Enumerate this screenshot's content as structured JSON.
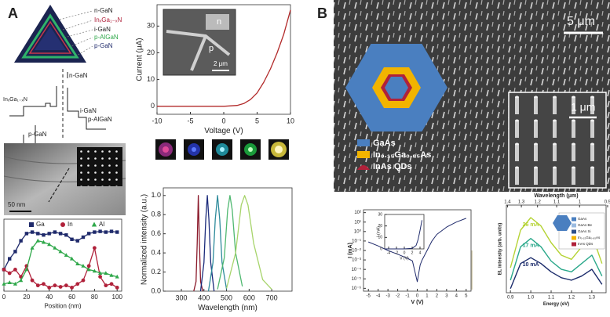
{
  "panel_labels": {
    "a": "A",
    "b": "B"
  },
  "structure_diagram": {
    "layers": [
      "n-GaN",
      "InₓGa₁₋ₓN",
      "i-GaN",
      "p-AlGaN",
      "p-GaN"
    ]
  },
  "band_diagram": {
    "labels": [
      "InₓGa₁₋ₓN",
      "n-GaN",
      "i-GaN",
      "p-AlGaN",
      "p-GaN"
    ]
  },
  "images": {
    "tem_scale": "50 nm",
    "sem_inset_labels": [
      "n",
      "p"
    ],
    "sem_inset_scale": "2 μm",
    "sem_scale": "5 μm",
    "sem_zoom_scale": "1 μm"
  },
  "nanowire_legend": [
    "GaAs",
    "In₀.₁₅Ga₀.₈₅As",
    "InAs QDs"
  ],
  "chart_data": [
    {
      "type": "line",
      "xlabel": "Voltage (V)",
      "ylabel": "Current (μA)",
      "x": [
        -10,
        -5,
        0,
        2,
        3,
        4,
        5,
        6,
        7,
        8,
        9,
        10
      ],
      "series": [
        {
          "color": "#b22a2a",
          "values": [
            0,
            0,
            0,
            0.3,
            1,
            2.5,
            5,
            9,
            14,
            20,
            27,
            36
          ]
        }
      ],
      "xlim": [
        -10,
        10
      ],
      "ylim": [
        -3,
        38
      ],
      "xticks": [
        -10,
        -5,
        0,
        5,
        10
      ],
      "yticks": [
        0,
        10,
        20,
        30
      ]
    },
    {
      "type": "line",
      "xlabel": "Position (nm)",
      "x": [
        0,
        5,
        10,
        15,
        20,
        25,
        30,
        35,
        40,
        45,
        50,
        55,
        60,
        65,
        70,
        75,
        80,
        85,
        90,
        95,
        100
      ],
      "series": [
        {
          "name": "Ga",
          "color": "#1f2a6b",
          "marker": "square",
          "values": [
            0.3,
            0.45,
            0.55,
            0.7,
            0.8,
            0.82,
            0.8,
            0.78,
            0.8,
            0.82,
            0.8,
            0.78,
            0.72,
            0.7,
            0.75,
            0.8,
            0.82,
            0.83,
            0.82,
            0.83,
            0.82
          ]
        },
        {
          "name": "In",
          "color": "#b0213a",
          "marker": "circle",
          "values": [
            0.3,
            0.25,
            0.3,
            0.2,
            0.35,
            0.15,
            0.08,
            0.1,
            0.05,
            0.08,
            0.06,
            0.08,
            0.05,
            0.1,
            0.15,
            0.35,
            0.6,
            0.2,
            0.08,
            0.1,
            0.05
          ]
        },
        {
          "name": "Al",
          "color": "#2fa84a",
          "marker": "triangle",
          "values": [
            0.1,
            0.12,
            0.1,
            0.15,
            0.3,
            0.6,
            0.7,
            0.68,
            0.65,
            0.6,
            0.55,
            0.5,
            0.45,
            0.38,
            0.35,
            0.3,
            0.28,
            0.25,
            0.25,
            0.22,
            0.2
          ]
        }
      ],
      "xlim": [
        0,
        104
      ],
      "ylim": [
        0,
        1
      ],
      "xticks": [
        0,
        20,
        40,
        60,
        80,
        100
      ]
    },
    {
      "type": "line",
      "xlabel": "Wavelength (nm)",
      "ylabel": "Normalized intensity (a.u.)",
      "series": [
        {
          "color": "#8b1a2b",
          "x": [
            355,
            365,
            370,
            375,
            380,
            385,
            395
          ],
          "values": [
            0,
            0.1,
            0.5,
            1,
            0.5,
            0.1,
            0
          ]
        },
        {
          "color": "#1a2a7a",
          "x": [
            385,
            400,
            408,
            415,
            422,
            430,
            445
          ],
          "values": [
            0,
            0.3,
            0.75,
            1,
            0.75,
            0.3,
            0
          ]
        },
        {
          "color": "#2e8b9b",
          "x": [
            420,
            440,
            450,
            460,
            470,
            480,
            500
          ],
          "values": [
            0,
            0.3,
            0.75,
            1,
            0.75,
            0.3,
            0.02
          ]
        },
        {
          "color": "#4fb870",
          "x": [
            460,
            490,
            505,
            515,
            525,
            540,
            570
          ],
          "values": [
            0.02,
            0.35,
            0.85,
            1,
            0.85,
            0.4,
            0.05
          ]
        },
        {
          "color": "#a7d46b",
          "x": [
            500,
            540,
            565,
            580,
            595,
            620,
            660,
            700
          ],
          "values": [
            0.03,
            0.4,
            0.9,
            1,
            0.9,
            0.5,
            0.12,
            0.02
          ]
        }
      ],
      "xlim": [
        220,
        790
      ],
      "ylim": [
        0,
        1.08
      ],
      "xticks": [
        300,
        400,
        500,
        600,
        700
      ],
      "yticks": [
        {
          "value": 0,
          "label": "0.0"
        },
        0.2,
        0.4,
        0.6,
        0.8,
        {
          "value": 1,
          "label": "1.0"
        }
      ]
    },
    {
      "type": "line",
      "xlabel": "V (V)",
      "ylabel": "I (mA)",
      "log_y": true,
      "x": [
        -5,
        -4,
        -3,
        -2,
        -1,
        -0.5,
        0,
        0.3,
        0.5,
        1,
        1.5,
        2,
        3,
        4,
        5
      ],
      "series": [
        {
          "color": "#1f2a6b",
          "values": [
            0.08,
            0.03,
            0.01,
            0.004,
            0.0015,
            0.0008,
            5e-06,
            0.0003,
            0.001,
            0.01,
            0.1,
            0.5,
            3,
            10,
            25
          ]
        }
      ],
      "xlim": [
        -5.5,
        5.5
      ],
      "ylim": [
        5e-07,
        200
      ],
      "xticks": [
        -5,
        -4,
        -3,
        -2,
        -1,
        0,
        1,
        2,
        3,
        4,
        5
      ],
      "yticks": [
        {
          "value": 100,
          "label": "10²"
        },
        {
          "value": 10,
          "label": "10¹"
        },
        {
          "value": 1,
          "label": "10⁰"
        },
        {
          "value": 0.1,
          "label": "10⁻¹"
        },
        {
          "value": 0.01,
          "label": "10⁻²"
        },
        {
          "value": 0.001,
          "label": "10⁻³"
        },
        {
          "value": 0.0001,
          "label": "10⁻⁴"
        },
        {
          "value": 1e-05,
          "label": "10⁻⁵"
        },
        {
          "value": 1e-06,
          "label": "10⁻⁶"
        }
      ]
    },
    {
      "type": "line",
      "xlabel": "V (V)",
      "ylabel": "I (mA)",
      "x": [
        -5,
        -4,
        -2,
        0,
        2,
        3,
        3.5,
        4,
        4.5
      ],
      "series": [
        {
          "color": "#1f2a6b",
          "values": [
            0,
            0,
            0,
            0,
            0.5,
            3,
            8,
            16,
            25
          ]
        }
      ],
      "xlim": [
        -5,
        5
      ],
      "ylim": [
        0,
        30
      ],
      "xticks": [
        -4,
        -2,
        0,
        2,
        4
      ],
      "yticks": [
        0,
        10,
        20,
        30
      ]
    },
    {
      "type": "line",
      "xlabel": "Energy (eV)",
      "ylabel": "EL intensity (arb. units)",
      "x2label": "Wavelength (μm)",
      "x": [
        0.9,
        0.95,
        1.0,
        1.05,
        1.1,
        1.15,
        1.2,
        1.25,
        1.3,
        1.35
      ],
      "series": [
        {
          "name": "26 mA",
          "color": "#b5d334",
          "values": [
            0.3,
            0.75,
            0.9,
            0.8,
            0.6,
            0.45,
            0.4,
            0.55,
            0.7,
            0.35
          ]
        },
        {
          "name": "17 mA",
          "color": "#2aa88a",
          "values": [
            0.15,
            0.55,
            0.65,
            0.55,
            0.38,
            0.28,
            0.25,
            0.35,
            0.45,
            0.2
          ]
        },
        {
          "name": "10 mA",
          "color": "#1a2a6a",
          "values": [
            0.05,
            0.35,
            0.42,
            0.35,
            0.25,
            0.18,
            0.15,
            0.2,
            0.28,
            0.1
          ]
        }
      ],
      "xlim": [
        0.88,
        1.37
      ],
      "ylim": [
        0,
        1.05
      ],
      "xticks": [
        0.9,
        {
          "value": 1,
          "label": "1.0"
        },
        1.1,
        1.2,
        1.3
      ],
      "x2ticks": [
        1.4,
        1.3,
        1.2,
        1.1,
        1,
        0.9
      ],
      "legend_items": [
        {
          "label": "GaAs",
          "color": "#4a7fc0"
        },
        {
          "label": "GaAs Be",
          "color": "#9bbbe0"
        },
        {
          "label": "GaAs Si",
          "color": "#2d4f8a"
        },
        {
          "label": "In₀.₁₅Ga₀.₈₅As",
          "color": "#f2b400"
        },
        {
          "label": "InAs QDs",
          "color": "#b0213a"
        }
      ]
    }
  ]
}
